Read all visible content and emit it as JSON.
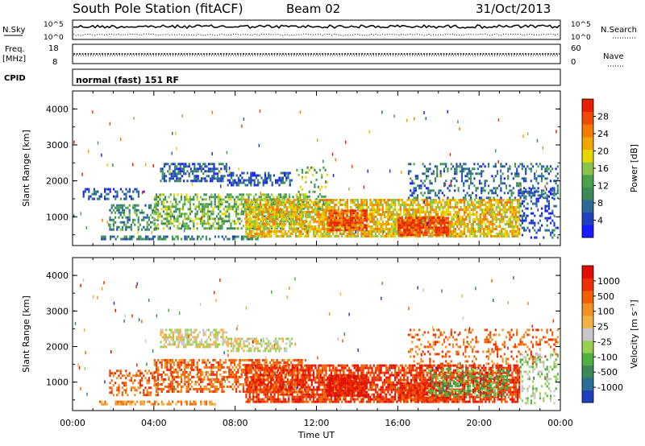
{
  "header": {
    "station": "South Pole Station (fitACF)",
    "beam": "Beam 02",
    "date": "31/Oct/2013"
  },
  "strips": {
    "nsky_label": "N.Sky",
    "nsearch_label": "N.Search",
    "freq_label": "Freq.",
    "freq_unit": "[MHz]",
    "nave_label": "Nave",
    "cpid_label": "CPID",
    "cpid_text": "normal (fast) 151 RF",
    "noise_ticks_left": [
      "10^5",
      "10^0"
    ],
    "noise_ticks_right": [
      "10^5",
      "10^0"
    ],
    "freq_ticks": [
      "18",
      "8"
    ],
    "nave_ticks": [
      "60",
      "0"
    ]
  },
  "colors": {
    "power": [
      "#1a1aff",
      "#2040c0",
      "#2a6a9a",
      "#3a8a5a",
      "#4aa34a",
      "#8bc34a",
      "#e5d800",
      "#f2a400",
      "#f47a00",
      "#f04a00",
      "#e62000"
    ],
    "velocity": [
      "#1f3fbf",
      "#2a6f9a",
      "#3a8a5a",
      "#50b040",
      "#98d050",
      "#c8c8c8",
      "#f4b040",
      "#f49020",
      "#f26000",
      "#ec3000",
      "#e01000"
    ]
  },
  "chart_data": [
    {
      "type": "heatmap",
      "name": "power-panel",
      "ylabel": "Slant Range [km]",
      "colorbar_label": "Power [dB]",
      "colorbar_ticks": [
        "28",
        "24",
        "20",
        "16",
        "12",
        "8",
        "4"
      ],
      "colorbar_range": [
        0,
        30
      ],
      "xlim": [
        0,
        24
      ],
      "ylim": [
        200,
        4500
      ],
      "yticks": [
        "4000",
        "3000",
        "2000",
        "1000"
      ],
      "ytick_values": [
        4000,
        3000,
        2000,
        1000
      ],
      "bands": [
        {
          "t0": 1.3,
          "t1": 9.5,
          "r0": 380,
          "r1": 480,
          "density": 0.55,
          "v": 8
        },
        {
          "t0": 1.8,
          "t1": 4.2,
          "r0": 650,
          "r1": 1350,
          "density": 0.45,
          "v": 10
        },
        {
          "t0": 0.5,
          "t1": 3.5,
          "r0": 1500,
          "r1": 1800,
          "density": 0.35,
          "v": 5
        },
        {
          "t0": 4.3,
          "t1": 7.6,
          "r0": 2000,
          "r1": 2500,
          "density": 0.6,
          "v": 6
        },
        {
          "t0": 7.6,
          "t1": 10.8,
          "r0": 1900,
          "r1": 2250,
          "density": 0.5,
          "v": 5
        },
        {
          "t0": 4.0,
          "t1": 11.5,
          "r0": 700,
          "r1": 1650,
          "density": 0.55,
          "v": 13
        },
        {
          "t0": 8.5,
          "t1": 22.0,
          "r0": 450,
          "r1": 1500,
          "density": 0.75,
          "v": 19
        },
        {
          "t0": 12.5,
          "t1": 14.5,
          "r0": 600,
          "r1": 1200,
          "density": 0.8,
          "v": 26
        },
        {
          "t0": 16.0,
          "t1": 18.5,
          "r0": 500,
          "r1": 1000,
          "density": 0.85,
          "v": 27
        },
        {
          "t0": 16.5,
          "t1": 23.9,
          "r0": 1500,
          "r1": 2500,
          "density": 0.3,
          "v": 7
        },
        {
          "t0": 11.0,
          "t1": 12.5,
          "r0": 1200,
          "r1": 2400,
          "density": 0.2,
          "v": 14
        },
        {
          "t0": 22.0,
          "t1": 23.9,
          "r0": 400,
          "r1": 1800,
          "density": 0.3,
          "v": 5
        }
      ]
    },
    {
      "type": "heatmap",
      "name": "velocity-panel",
      "ylabel": "Slant Range [km]",
      "colorbar_label": "Velocity [m s⁻¹]",
      "colorbar_ticks": [
        "1000",
        "500",
        "100",
        "25",
        "-25",
        "-100",
        "-500",
        "-1000"
      ],
      "colorbar_range": [
        1000,
        -1000
      ],
      "xlim": [
        0,
        24
      ],
      "ylim": [
        200,
        4500
      ],
      "yticks": [
        "4000",
        "3000",
        "2000",
        "1000"
      ],
      "ytick_values": [
        4000,
        3000,
        2000,
        1000
      ],
      "xlabel": "Time UT",
      "xticks": [
        "00:00",
        "04:00",
        "08:00",
        "12:00",
        "16:00",
        "20:00",
        "00:00"
      ],
      "xtick_values": [
        0,
        4,
        8,
        12,
        16,
        20,
        24
      ],
      "bands": [
        {
          "t0": 1.3,
          "t1": 7.0,
          "r0": 380,
          "r1": 480,
          "density": 0.6,
          "c": 7
        },
        {
          "t0": 1.8,
          "t1": 4.2,
          "r0": 650,
          "r1": 1350,
          "density": 0.45,
          "c": 8
        },
        {
          "t0": 4.3,
          "t1": 7.6,
          "r0": 2000,
          "r1": 2500,
          "density": 0.6,
          "c": 5
        },
        {
          "t0": 7.6,
          "t1": 10.8,
          "r0": 1900,
          "r1": 2250,
          "density": 0.5,
          "c": 5
        },
        {
          "t0": 4.0,
          "t1": 11.5,
          "r0": 700,
          "r1": 1650,
          "density": 0.55,
          "c": 8
        },
        {
          "t0": 8.5,
          "t1": 22.0,
          "r0": 450,
          "r1": 1500,
          "density": 0.75,
          "c": 9
        },
        {
          "t0": 12.5,
          "t1": 14.5,
          "r0": 600,
          "r1": 1200,
          "density": 0.8,
          "c": 10
        },
        {
          "t0": 16.0,
          "t1": 18.5,
          "r0": 500,
          "r1": 1000,
          "density": 0.85,
          "c": 9
        },
        {
          "t0": 17.5,
          "t1": 21.5,
          "r0": 600,
          "r1": 1400,
          "density": 0.4,
          "c": 3
        },
        {
          "t0": 16.5,
          "t1": 23.9,
          "r0": 1500,
          "r1": 2500,
          "density": 0.25,
          "c": 8
        },
        {
          "t0": 22.0,
          "t1": 23.9,
          "r0": 400,
          "r1": 1800,
          "density": 0.3,
          "c": 4
        }
      ]
    }
  ]
}
